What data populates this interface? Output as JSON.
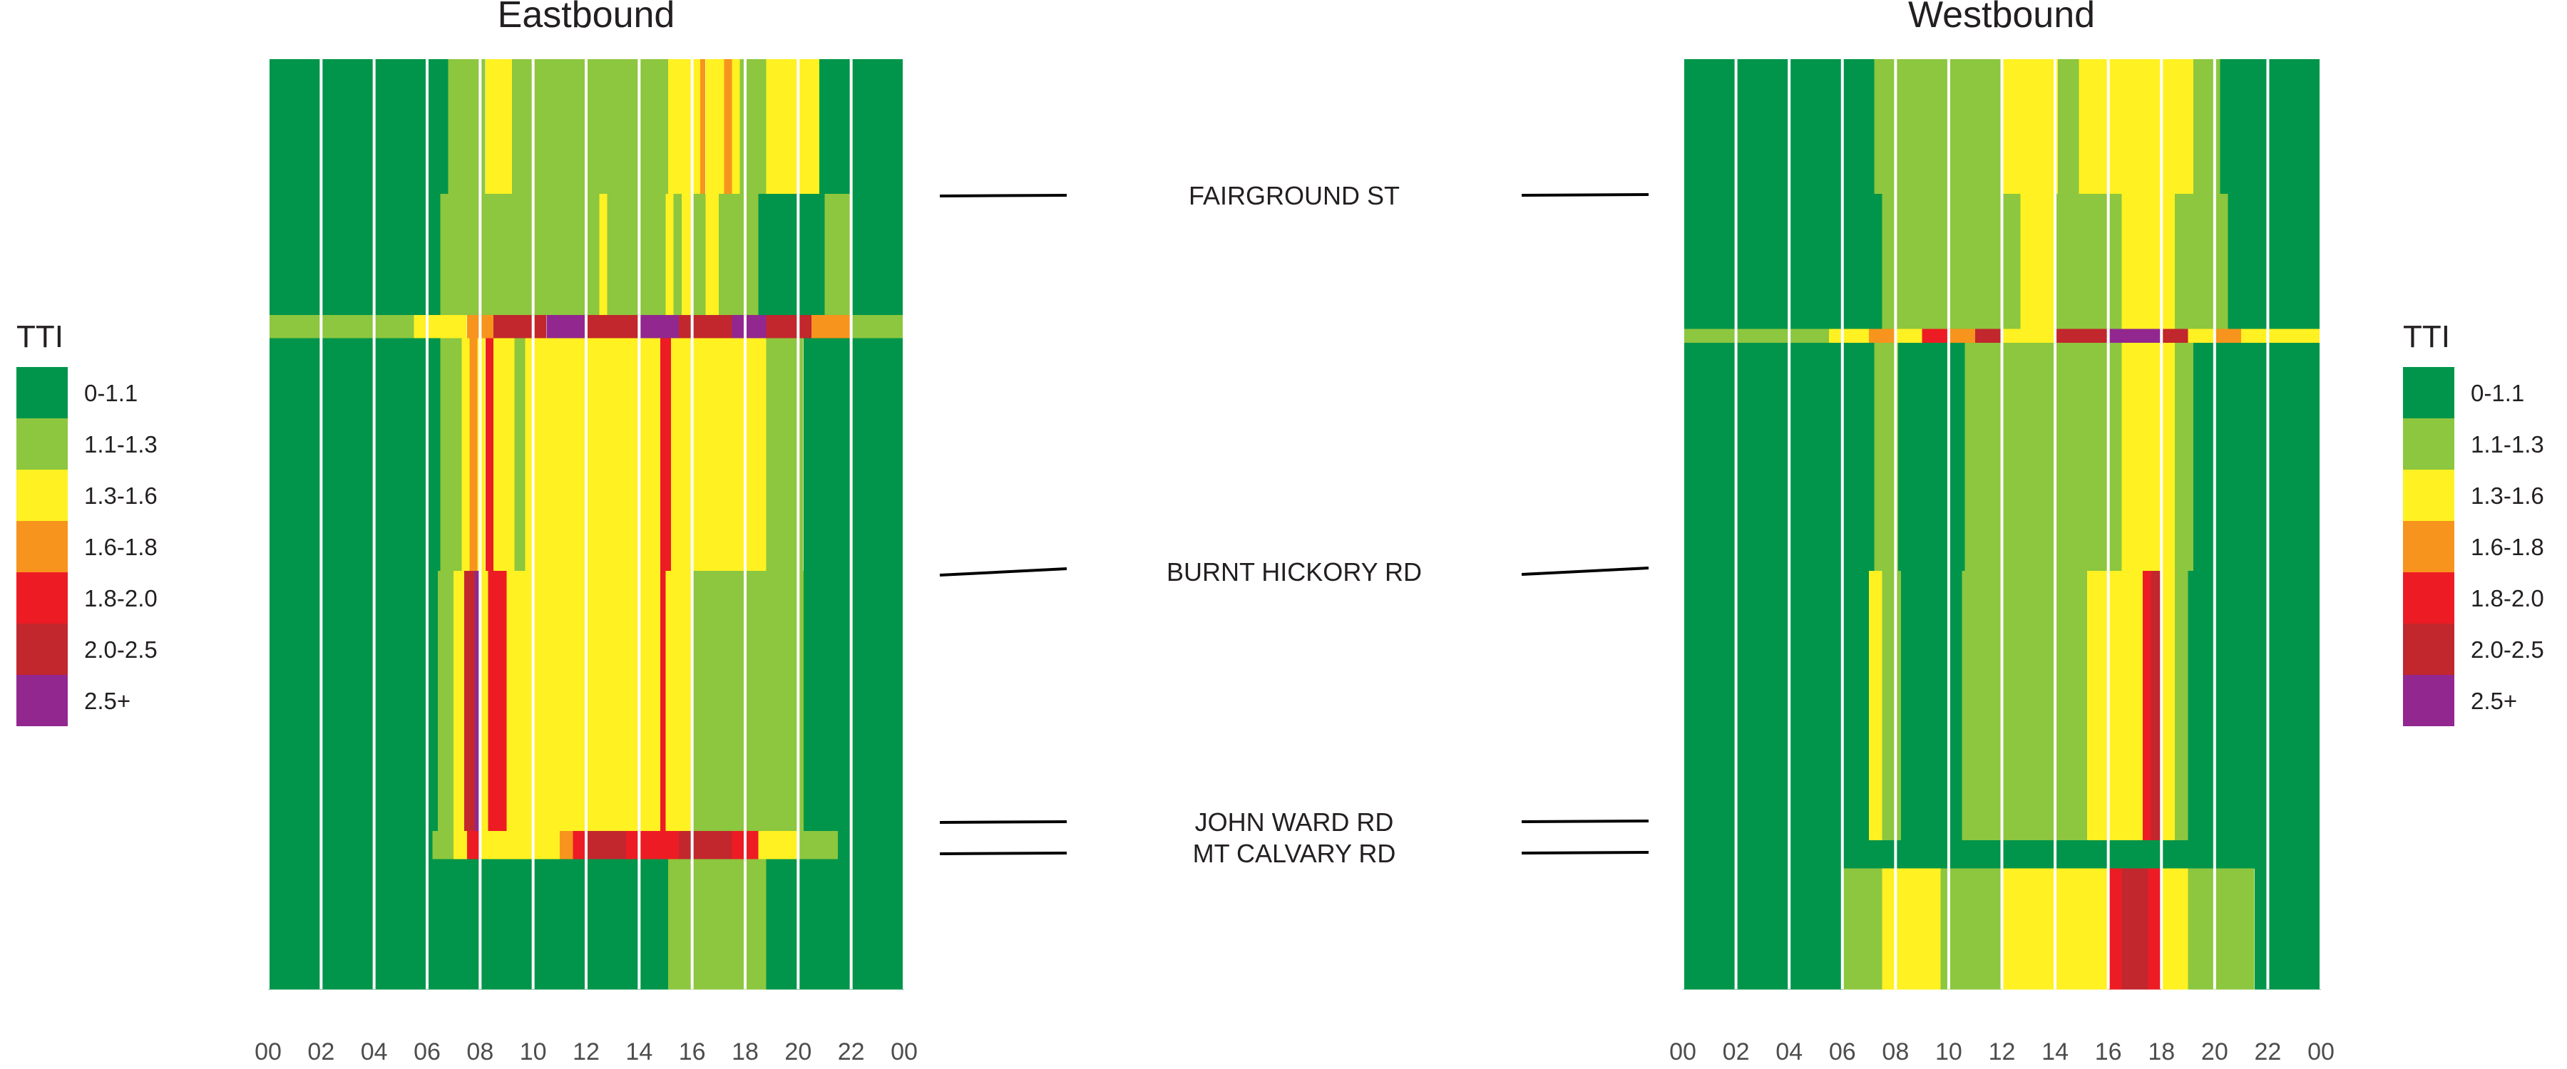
{
  "colors": {
    "c0": "#00954a",
    "c1": "#8dc63f",
    "c2": "#fff122",
    "c3": "#f7941d",
    "c4": "#ed1c24",
    "c5": "#c1272d",
    "c6": "#92278f",
    "grid": "#ffffff",
    "text": "#231f20",
    "tick": "#4d4d4d",
    "leader": "#000000"
  },
  "chart_data": [
    {
      "type": "heatmap",
      "title": "Eastbound",
      "xlabel": "",
      "ylabel": "",
      "x_range": [
        0,
        24
      ],
      "x_unit": "hour of day",
      "x_ticks": [
        "00",
        "02",
        "04",
        "06",
        "08",
        "10",
        "12",
        "14",
        "16",
        "18",
        "20",
        "22",
        "00"
      ],
      "y_range": [
        0,
        1
      ],
      "y_unit": "relative position along corridor (0 = top, 1 = bottom)",
      "bands": [
        {
          "y": [
            0,
            0.145
          ],
          "cells": [
            [
              0,
              6.8,
              0
            ],
            [
              6.8,
              8.2,
              1
            ],
            [
              8.2,
              9.2,
              2
            ],
            [
              9.2,
              15.1,
              1
            ],
            [
              15.1,
              16.3,
              2
            ],
            [
              16.3,
              16.5,
              3
            ],
            [
              16.5,
              17.2,
              2
            ],
            [
              17.2,
              17.5,
              3
            ],
            [
              17.5,
              17.8,
              2
            ],
            [
              17.8,
              18.8,
              1
            ],
            [
              18.8,
              20.8,
              2
            ],
            [
              20.8,
              24,
              0
            ]
          ]
        },
        {
          "y": [
            0.145,
            0.275
          ],
          "cells": [
            [
              0,
              6.5,
              0
            ],
            [
              6.5,
              12.5,
              1
            ],
            [
              12.5,
              12.8,
              2
            ],
            [
              12.8,
              15,
              1
            ],
            [
              15,
              15.3,
              2
            ],
            [
              15.3,
              15.6,
              1
            ],
            [
              15.6,
              16,
              2
            ],
            [
              16,
              16.5,
              1
            ],
            [
              16.5,
              17,
              2
            ],
            [
              17,
              18.5,
              1
            ],
            [
              18.5,
              21,
              0
            ],
            [
              21,
              22,
              1
            ],
            [
              22,
              24,
              0
            ]
          ]
        },
        {
          "y": [
            0.275,
            0.3
          ],
          "cells": [
            [
              0,
              5.5,
              1
            ],
            [
              5.5,
              6.2,
              2
            ],
            [
              6.2,
              7.5,
              2
            ],
            [
              7.5,
              8.5,
              3
            ],
            [
              8.5,
              10.5,
              5
            ],
            [
              10.5,
              12,
              6
            ],
            [
              12,
              14,
              5
            ],
            [
              14,
              15.5,
              6
            ],
            [
              15.5,
              17.5,
              5
            ],
            [
              17.5,
              18.8,
              6
            ],
            [
              18.8,
              20.5,
              5
            ],
            [
              20.5,
              22,
              3
            ],
            [
              22,
              24,
              1
            ]
          ]
        },
        {
          "y": [
            0.3,
            0.55
          ],
          "cells": [
            [
              0,
              6.5,
              0
            ],
            [
              6.5,
              7.3,
              1
            ],
            [
              7.3,
              7.6,
              2
            ],
            [
              7.6,
              7.9,
              3
            ],
            [
              7.9,
              8.2,
              2
            ],
            [
              8.2,
              8.5,
              4
            ],
            [
              8.5,
              9.3,
              2
            ],
            [
              9.3,
              9.7,
              1
            ],
            [
              9.7,
              14.8,
              2
            ],
            [
              14.8,
              15.2,
              4
            ],
            [
              15.2,
              18.8,
              2
            ],
            [
              18.8,
              20.2,
              1
            ],
            [
              20.2,
              24,
              0
            ]
          ]
        },
        {
          "y": [
            0.55,
            0.83
          ],
          "cells": [
            [
              0,
              6.4,
              0
            ],
            [
              6.4,
              7,
              1
            ],
            [
              7,
              7.4,
              2
            ],
            [
              7.4,
              7.8,
              5
            ],
            [
              7.8,
              8,
              6
            ],
            [
              8,
              8.3,
              2
            ],
            [
              8.3,
              9,
              4
            ],
            [
              9,
              14.8,
              2
            ],
            [
              14.8,
              15,
              4
            ],
            [
              15,
              16,
              2
            ],
            [
              16,
              20.2,
              1
            ],
            [
              20.2,
              24,
              0
            ]
          ]
        },
        {
          "y": [
            0.83,
            0.86
          ],
          "cells": [
            [
              0,
              6.2,
              0
            ],
            [
              6.2,
              7,
              1
            ],
            [
              7,
              7.5,
              2
            ],
            [
              7.5,
              8,
              4
            ],
            [
              8,
              11,
              2
            ],
            [
              11,
              11.5,
              3
            ],
            [
              11.5,
              12,
              4
            ],
            [
              12,
              13.5,
              5
            ],
            [
              13.5,
              15.5,
              4
            ],
            [
              15.5,
              17.5,
              5
            ],
            [
              17.5,
              18.5,
              4
            ],
            [
              18.5,
              20,
              2
            ],
            [
              20,
              21.5,
              1
            ],
            [
              21.5,
              24,
              0
            ]
          ]
        },
        {
          "y": [
            0.86,
            1.0
          ],
          "cells": [
            [
              0,
              15.1,
              0
            ],
            [
              15.1,
              18.8,
              1
            ],
            [
              18.8,
              24,
              0
            ]
          ]
        }
      ]
    },
    {
      "type": "heatmap",
      "title": "Westbound",
      "xlabel": "",
      "ylabel": "",
      "x_range": [
        0,
        24
      ],
      "x_unit": "hour of day",
      "x_ticks": [
        "00",
        "02",
        "04",
        "06",
        "08",
        "10",
        "12",
        "14",
        "16",
        "18",
        "20",
        "22",
        "00"
      ],
      "y_range": [
        0,
        1
      ],
      "y_unit": "relative position along corridor (0 = top, 1 = bottom)",
      "bands": [
        {
          "y": [
            0,
            0.145
          ],
          "cells": [
            [
              0,
              7.2,
              0
            ],
            [
              7.2,
              12,
              1
            ],
            [
              12,
              14.1,
              2
            ],
            [
              14.1,
              14.9,
              1
            ],
            [
              14.9,
              19.2,
              2
            ],
            [
              19.2,
              20.2,
              1
            ],
            [
              20.2,
              24,
              0
            ]
          ]
        },
        {
          "y": [
            0.145,
            0.29
          ],
          "cells": [
            [
              0,
              7.5,
              0
            ],
            [
              7.5,
              12.7,
              1
            ],
            [
              12.7,
              14,
              2
            ],
            [
              14,
              16.5,
              1
            ],
            [
              16.5,
              18.5,
              2
            ],
            [
              18.5,
              20.5,
              1
            ],
            [
              20.5,
              24,
              0
            ]
          ]
        },
        {
          "y": [
            0.29,
            0.305
          ],
          "cells": [
            [
              0,
              5.5,
              1
            ],
            [
              5.5,
              7,
              2
            ],
            [
              7,
              8,
              3
            ],
            [
              8,
              9,
              2
            ],
            [
              9,
              10,
              4
            ],
            [
              10,
              11,
              3
            ],
            [
              11,
              12,
              5
            ],
            [
              12,
              14,
              2
            ],
            [
              14,
              16,
              5
            ],
            [
              16,
              18,
              6
            ],
            [
              18,
              19,
              5
            ],
            [
              19,
              20,
              2
            ],
            [
              20,
              21,
              3
            ],
            [
              21,
              24,
              2
            ]
          ]
        },
        {
          "y": [
            0.305,
            0.55
          ],
          "cells": [
            [
              0,
              7.2,
              0
            ],
            [
              7.2,
              8.1,
              1
            ],
            [
              8.1,
              10.6,
              0
            ],
            [
              10.6,
              16.5,
              1
            ],
            [
              16.5,
              18.5,
              2
            ],
            [
              18.5,
              19.2,
              1
            ],
            [
              19.2,
              24,
              0
            ]
          ]
        },
        {
          "y": [
            0.55,
            0.84
          ],
          "cells": [
            [
              0,
              7,
              0
            ],
            [
              7,
              7.5,
              2
            ],
            [
              7.5,
              8.2,
              1
            ],
            [
              8.2,
              10.5,
              0
            ],
            [
              10.5,
              15.2,
              1
            ],
            [
              15.2,
              17.3,
              2
            ],
            [
              17.3,
              17.6,
              4
            ],
            [
              17.6,
              18,
              5
            ],
            [
              18,
              18.5,
              2
            ],
            [
              18.5,
              19,
              1
            ],
            [
              19,
              24,
              0
            ]
          ]
        },
        {
          "y": [
            0.84,
            0.87
          ],
          "cells": [
            [
              0,
              24,
              0
            ]
          ]
        },
        {
          "y": [
            0.87,
            1.0
          ],
          "cells": [
            [
              0,
              6,
              0
            ],
            [
              6,
              7.5,
              1
            ],
            [
              7.5,
              9.7,
              2
            ],
            [
              9.7,
              12,
              1
            ],
            [
              12,
              16,
              2
            ],
            [
              16,
              16.5,
              4
            ],
            [
              16.5,
              17.5,
              5
            ],
            [
              17.5,
              18,
              4
            ],
            [
              18,
              19,
              2
            ],
            [
              19,
              21.5,
              1
            ],
            [
              21.5,
              24,
              0
            ]
          ]
        }
      ]
    }
  ],
  "landmarks": [
    {
      "label": "FAIRGROUND ST",
      "y": 0.145
    },
    {
      "label": "BURNT HICKORY RD",
      "y": 0.55
    },
    {
      "label": "JOHN WARD RD",
      "y": 0.82
    },
    {
      "label": "MT CALVARY RD",
      "y": 0.855
    }
  ],
  "legend": {
    "title": "TTI",
    "items": [
      {
        "label": "0-1.1",
        "color": "#00954a"
      },
      {
        "label": "1.1-1.3",
        "color": "#8dc63f"
      },
      {
        "label": "1.3-1.6",
        "color": "#fff122"
      },
      {
        "label": "1.6-1.8",
        "color": "#f7941d"
      },
      {
        "label": "1.8-2.0",
        "color": "#ed1c24"
      },
      {
        "label": "2.0-2.5",
        "color": "#c1272d"
      },
      {
        "label": "2.5+",
        "color": "#92278f"
      }
    ]
  }
}
